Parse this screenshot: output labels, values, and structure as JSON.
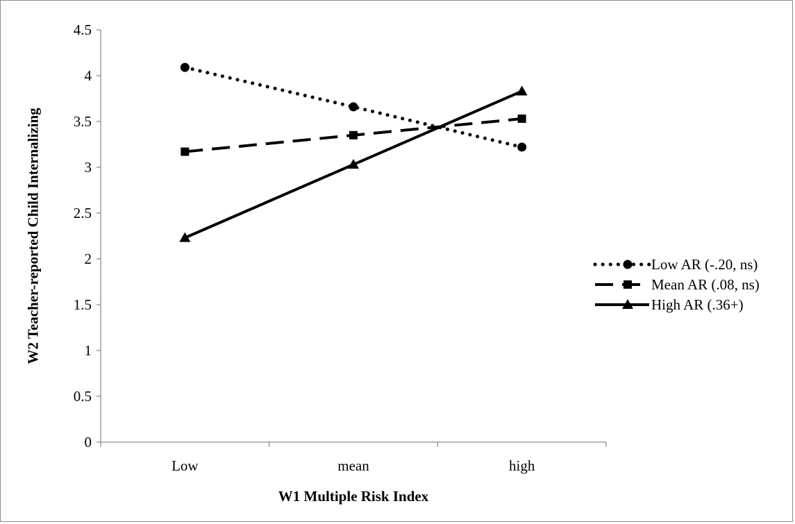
{
  "chart_data": {
    "type": "line",
    "title": "",
    "xlabel": "W1 Multiple Risk Index",
    "ylabel": "W2 Teacher-reported Child Internalizing",
    "categories": [
      "Low",
      "mean",
      "high"
    ],
    "ylim": [
      0,
      4.5
    ],
    "yticks": [
      0,
      0.5,
      1,
      1.5,
      2,
      2.5,
      3,
      3.5,
      4,
      4.5
    ],
    "ytick_labels": [
      "0",
      "0.5",
      "1",
      "1.5",
      "2",
      "2.5",
      "3",
      "3.5",
      "4",
      "4.5"
    ],
    "grid": false,
    "legend_position": "right",
    "series": [
      {
        "name": "Low AR (-.20, ns)",
        "values": [
          4.09,
          3.66,
          3.22
        ],
        "line_style": "dotted",
        "marker": "circle",
        "color": "#000000"
      },
      {
        "name": "Mean AR (.08, ns)",
        "values": [
          3.17,
          3.35,
          3.53
        ],
        "line_style": "dashed",
        "marker": "square",
        "color": "#000000"
      },
      {
        "name": "High AR (.36+)",
        "values": [
          2.23,
          3.03,
          3.83
        ],
        "line_style": "solid",
        "marker": "triangle",
        "color": "#000000"
      }
    ]
  }
}
